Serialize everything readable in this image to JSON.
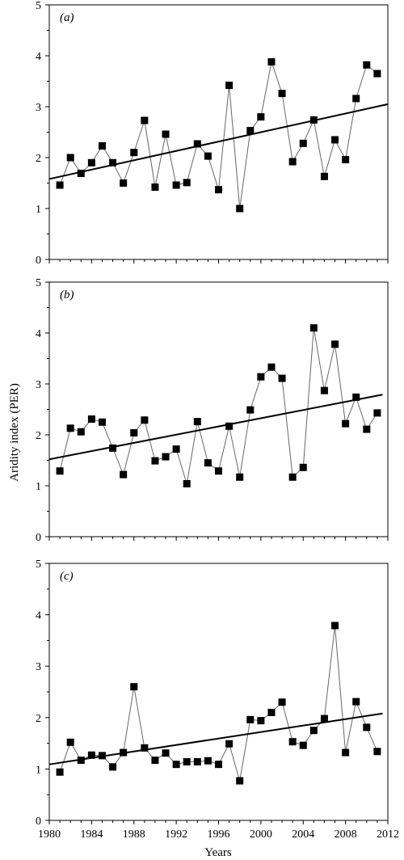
{
  "figure": {
    "ylabel": "Aridity index (PER)",
    "xlabel": "Years"
  },
  "chart_data": [
    {
      "type": "line",
      "panel_label": "(a)",
      "xlim": [
        1980,
        2012
      ],
      "ylim": [
        0,
        5
      ],
      "x_ticks": [
        1980,
        1984,
        1988,
        1992,
        1996,
        2000,
        2004,
        2008,
        2012
      ],
      "y_ticks": [
        0,
        1,
        2,
        3,
        4,
        5
      ],
      "x": [
        1981,
        1982,
        1983,
        1984,
        1985,
        1986,
        1987,
        1988,
        1989,
        1990,
        1991,
        1992,
        1993,
        1994,
        1995,
        1996,
        1997,
        1998,
        1999,
        2000,
        2001,
        2002,
        2003,
        2004,
        2005,
        2006,
        2007,
        2008,
        2009,
        2010,
        2011,
        2012
      ],
      "values": [
        1.46,
        2.0,
        1.69,
        1.9,
        2.23,
        1.9,
        1.5,
        2.1,
        2.73,
        1.42,
        2.46,
        1.46,
        1.51,
        2.27,
        2.03,
        1.37,
        3.42,
        1.0,
        2.53,
        2.8,
        3.88,
        3.26,
        1.92,
        2.28,
        2.74,
        1.63,
        2.35,
        1.96,
        3.16,
        3.82,
        3.65,
        null
      ],
      "trend": {
        "x": [
          1980,
          2012
        ],
        "y": [
          1.58,
          3.05
        ]
      }
    },
    {
      "type": "line",
      "panel_label": "(b)",
      "xlim": [
        1980,
        2012
      ],
      "ylim": [
        0,
        5
      ],
      "x_ticks": [
        1980,
        1984,
        1988,
        1992,
        1996,
        2000,
        2004,
        2008,
        2012
      ],
      "y_ticks": [
        0,
        1,
        2,
        3,
        4,
        5
      ],
      "x": [
        1981,
        1982,
        1983,
        1984,
        1985,
        1986,
        1987,
        1988,
        1989,
        1990,
        1991,
        1992,
        1993,
        1994,
        1995,
        1996,
        1997,
        1998,
        1999,
        2000,
        2001,
        2002,
        2003,
        2004,
        2005,
        2006,
        2007,
        2008,
        2009,
        2010,
        2011
      ],
      "values": [
        1.29,
        2.13,
        2.06,
        2.31,
        2.25,
        1.74,
        1.22,
        2.04,
        2.29,
        1.49,
        1.57,
        1.72,
        1.04,
        2.26,
        1.45,
        1.29,
        2.17,
        1.17,
        2.49,
        3.14,
        3.33,
        3.11,
        1.17,
        1.36,
        4.1,
        2.87,
        3.78,
        2.22,
        2.74,
        2.11,
        2.43
      ],
      "trend": {
        "x": [
          1980,
          2011.5
        ],
        "y": [
          1.52,
          2.79
        ]
      }
    },
    {
      "type": "line",
      "panel_label": "(c)",
      "xlim": [
        1980,
        2012
      ],
      "ylim": [
        0,
        5
      ],
      "x_ticks": [
        1980,
        1984,
        1988,
        1992,
        1996,
        2000,
        2004,
        2008,
        2012
      ],
      "y_ticks": [
        0,
        1,
        2,
        3,
        4,
        5
      ],
      "x": [
        1981,
        1982,
        1983,
        1984,
        1985,
        1986,
        1987,
        1988,
        1989,
        1990,
        1991,
        1992,
        1993,
        1994,
        1995,
        1996,
        1997,
        1998,
        1999,
        2000,
        2001,
        2002,
        2003,
        2004,
        2005,
        2006,
        2007,
        2008,
        2009,
        2010,
        2011
      ],
      "values": [
        0.94,
        1.52,
        1.17,
        1.27,
        1.26,
        1.04,
        1.32,
        2.6,
        1.41,
        1.17,
        1.31,
        1.09,
        1.14,
        1.14,
        1.16,
        1.09,
        1.49,
        0.77,
        1.96,
        1.94,
        2.1,
        2.3,
        1.53,
        1.46,
        1.75,
        1.98,
        3.79,
        1.32,
        2.31,
        1.81,
        1.34
      ],
      "trend": {
        "x": [
          1980,
          2011.5
        ],
        "y": [
          1.09,
          2.08
        ]
      }
    }
  ]
}
